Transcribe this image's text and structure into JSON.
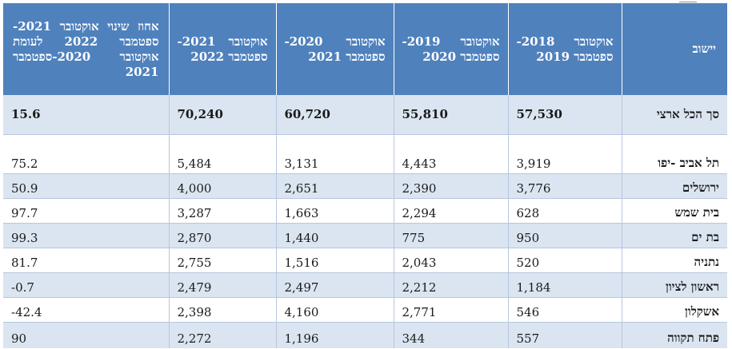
{
  "table": {
    "headers": {
      "city": "יישוב",
      "y1": "אוקטובר 2018- ספטמבר 2019",
      "y2": "אוקטובר 2019- ספטמבר 2020",
      "y3": "אוקטובר 2020- ספטמבר 2021",
      "y4": "אוקטובר 2021- ספטמבר 2022",
      "pct": "אחוז שינוי אוקטובר 2021- ספטמבר 2022 לעומת אוקטובר 2020-ספטמבר 2021"
    },
    "total": {
      "city": "סך הכל ארצי",
      "y1": "57,530",
      "y2": "55,810",
      "y3": "60,720",
      "y4": "70,240",
      "pct": "15.6"
    },
    "rows": [
      {
        "city": "תל אביב -יפו",
        "y1": "3,919",
        "y2": "4,443",
        "y3": "3,131",
        "y4": "5,484",
        "pct": "75.2"
      },
      {
        "city": "ירושלים",
        "y1": "3,776",
        "y2": "2,390",
        "y3": "2,651",
        "y4": "4,000",
        "pct": "50.9"
      },
      {
        "city": "בית שמש",
        "y1": "628",
        "y2": "2,294",
        "y3": "1,663",
        "y4": "3,287",
        "pct": "97.7"
      },
      {
        "city": "בת ים",
        "y1": "950",
        "y2": "775",
        "y3": "1,440",
        "y4": "2,870",
        "pct": "99.3"
      },
      {
        "city": "נתניה",
        "y1": "520",
        "y2": "2,043",
        "y3": "1,516",
        "y4": "2,755",
        "pct": "81.7"
      },
      {
        "city": "ראשון לציון",
        "y1": "1,184",
        "y2": "2,212",
        "y3": "2,497",
        "y4": "2,479",
        "pct": "0.7-"
      },
      {
        "city": "אשקלון",
        "y1": "546",
        "y2": "2,771",
        "y3": "4,160",
        "y4": "2,398",
        "pct": "42.4-"
      },
      {
        "city": "פתח תקווה",
        "y1": "557",
        "y2": "344",
        "y3": "1,196",
        "y4": "2,272",
        "pct": "90"
      }
    ]
  },
  "colors": {
    "header_bg": "#4f81bd",
    "band_bg": "#dbe5f1",
    "border": "#b7c6df"
  }
}
